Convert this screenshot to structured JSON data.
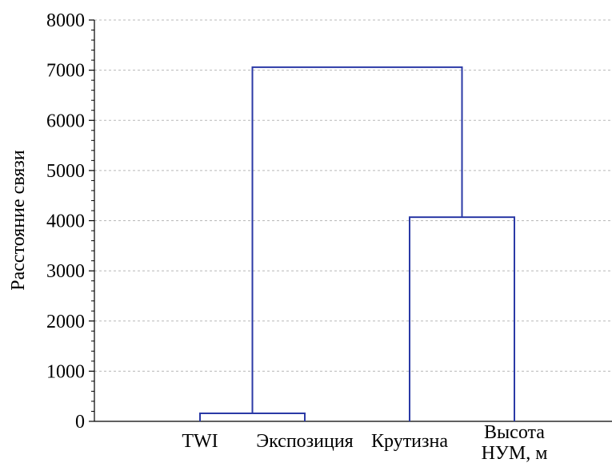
{
  "chart_data": {
    "type": "dendrogram",
    "title": "",
    "xlabel": "",
    "ylabel": "Расстояние связи",
    "ylim": [
      0,
      8000
    ],
    "yticks": [
      0,
      1000,
      2000,
      3000,
      4000,
      5000,
      6000,
      7000,
      8000
    ],
    "grid": true,
    "leaves": [
      {
        "id": "twi",
        "lines": [
          "TWI"
        ]
      },
      {
        "id": "exposure",
        "lines": [
          "Экспозиция"
        ]
      },
      {
        "id": "slope",
        "lines": [
          "Крутизна"
        ]
      },
      {
        "id": "height",
        "lines": [
          "Высота",
          "НУМ, м"
        ]
      }
    ],
    "merges": [
      {
        "left": "twi",
        "right": "exposure",
        "distance": 160
      },
      {
        "left": "slope",
        "right": "height",
        "distance": 4070
      },
      {
        "left": "twi+exposure",
        "right": "slope+height",
        "distance": 7060
      }
    ],
    "line_color": "#2b3aa6"
  }
}
